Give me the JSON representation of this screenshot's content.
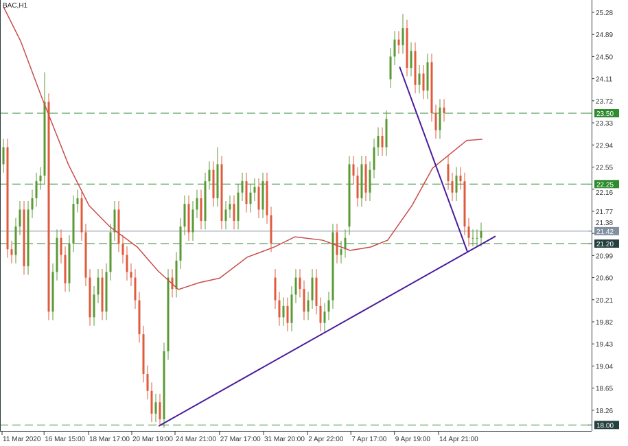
{
  "chart_data": {
    "type": "candlestick",
    "title": "BAC,H1",
    "colors": {
      "bull": "#5a9a35",
      "bear": "#e05a3c",
      "ma": "#c94c4c",
      "trendline": "#4b1c9c",
      "level_line": "#2e8b2e",
      "level_label_green": "#2e8b2e",
      "level_label_dark": "#264040",
      "bid_label": "#8090a0",
      "axis": "#2a3a3a"
    },
    "ylim": [
      17.95,
      25.5
    ],
    "y_ticks": [
      "25.28",
      "24.89",
      "24.50",
      "24.11",
      "23.72",
      "23.33",
      "22.94",
      "22.55",
      "22.16",
      "21.77",
      "21.38",
      "20.99",
      "20.60",
      "20.21",
      "19.82",
      "19.43",
      "19.04",
      "18.65",
      "18.26"
    ],
    "x_ticks": [
      {
        "index": 0,
        "label": "11 Mar 2020"
      },
      {
        "index": 10.2,
        "label": "16 Mar 15:00"
      },
      {
        "index": 21,
        "label": "18 Mar 17:00"
      },
      {
        "index": 31.5,
        "label": "20 Mar 19:00"
      },
      {
        "index": 42,
        "label": "24 Mar 21:00"
      },
      {
        "index": 52.8,
        "label": "27 Mar 17:00"
      },
      {
        "index": 63.5,
        "label": "31 Mar 20:00"
      },
      {
        "index": 74.2,
        "label": "2 Apr 22:00"
      },
      {
        "index": 84.7,
        "label": "7 Apr 17:00"
      },
      {
        "index": 95.3,
        "label": "9 Apr 19:00"
      },
      {
        "index": 106,
        "label": "14 Apr 21:00"
      }
    ],
    "close": [
      22.9,
      21.1,
      21.0,
      21.5,
      21.8,
      20.8,
      21.8,
      22.0,
      22.3,
      22.4,
      23.7,
      20.0,
      20.7,
      21.3,
      21.0,
      20.5,
      21.2,
      21.9,
      22.0,
      21.4,
      20.6,
      19.9,
      20.3,
      20.6,
      20.0,
      20.7,
      21.4,
      21.8,
      21.2,
      21.0,
      20.7,
      20.6,
      20.2,
      19.6,
      18.9,
      18.6,
      18.2,
      18.4,
      18.1,
      19.3,
      20.6,
      20.4,
      20.9,
      21.5,
      21.9,
      21.4,
      21.8,
      22.0,
      21.6,
      22.3,
      22.5,
      22.0,
      22.6,
      21.6,
      21.8,
      21.9,
      21.6,
      22.1,
      22.3,
      21.9,
      22.1,
      22.2,
      21.8,
      22.3,
      21.7,
      21.2,
      20.2,
      19.9,
      20.1,
      19.8,
      20.3,
      20.6,
      20.4,
      20.0,
      20.2,
      20.6,
      20.1,
      19.8,
      20.0,
      20.2,
      21.4,
      21.0,
      21.1,
      21.3,
      22.6,
      22.4,
      22.0,
      22.6,
      22.1,
      22.5,
      22.9,
      23.1,
      22.9,
      23.4,
      24.5,
      24.8,
      24.7,
      25.0,
      24.3,
      24.6,
      24.0,
      24.2,
      23.9,
      24.4,
      23.5,
      23.2,
      23.6,
      23.5,
      22.3,
      22.1,
      22.4,
      22.3,
      21.5,
      21.3,
      21.3,
      21.3,
      21.42
    ],
    "first_open": 22.6,
    "gap_opens": {
      "66": 20.6,
      "84": 21.5,
      "94": 24.1,
      "108": 22.6
    },
    "extremes": {
      "10": {
        "high": 24.22
      },
      "11": {
        "low": 19.85
      },
      "38": {
        "low": 17.98
      },
      "97": {
        "high": 25.25
      },
      "52": {
        "high": 22.9
      }
    },
    "moving_average": [
      [
        0,
        25.38
      ],
      [
        4.2,
        24.77
      ],
      [
        9.2,
        23.8
      ],
      [
        15.8,
        22.59
      ],
      [
        20.8,
        21.87
      ],
      [
        25.8,
        21.5
      ],
      [
        32.5,
        21.14
      ],
      [
        37.5,
        20.72
      ],
      [
        42.5,
        20.39
      ],
      [
        47.5,
        20.51
      ],
      [
        52.5,
        20.59
      ],
      [
        59.2,
        20.96
      ],
      [
        65.8,
        21.14
      ],
      [
        70.8,
        21.32
      ],
      [
        77.5,
        21.26
      ],
      [
        84.2,
        21.08
      ],
      [
        89.2,
        21.14
      ],
      [
        93.3,
        21.26
      ],
      [
        99.2,
        21.87
      ],
      [
        104.2,
        22.53
      ],
      [
        112.5,
        23.02
      ],
      [
        116.3,
        23.04
      ]
    ],
    "levels": [
      {
        "price": 23.5,
        "label": "23.50",
        "style": "green"
      },
      {
        "price": 22.25,
        "label": "22.25",
        "style": "green"
      },
      {
        "price": 21.2,
        "label": "21.20",
        "style": "dark"
      },
      {
        "price": 18.0,
        "label": "18.00",
        "style": "dark"
      }
    ],
    "bid": {
      "price": 21.42,
      "label": "21.42"
    },
    "trendlines": [
      {
        "from": [
          37.7,
          17.98
        ],
        "to": [
          119.5,
          21.33
        ]
      },
      {
        "from": [
          96.2,
          24.32
        ],
        "to": [
          112.7,
          21.05
        ]
      }
    ]
  }
}
